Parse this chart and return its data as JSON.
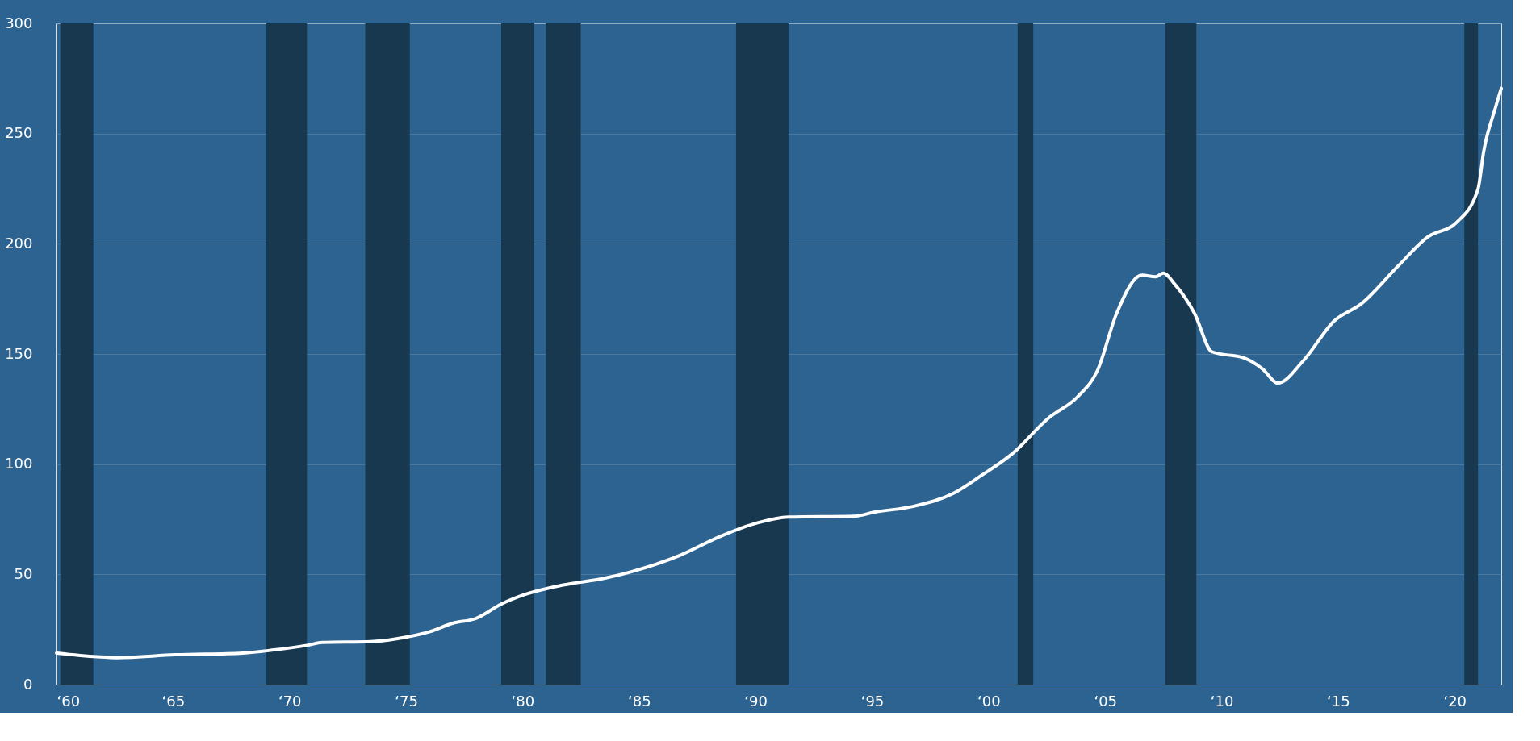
{
  "chart_data": {
    "type": "line",
    "x": [
      "1960-01",
      "1961-10",
      "1962-08",
      "1965-02",
      "1968-01",
      "1969-04",
      "1970-10",
      "1971-06",
      "1973-07",
      "1975-02",
      "1976-01",
      "1977-01",
      "1978-01",
      "1979-02",
      "1980-02",
      "1981-10",
      "1983-07",
      "1984-09",
      "1986-10",
      "1988-07",
      "1990-02",
      "1991-06",
      "1994-04",
      "1995-02",
      "1996-10",
      "1998-07",
      "1999-09",
      "2001-01",
      "2002-08",
      "2003-11",
      "2004-09",
      "2005-07",
      "2006-08",
      "2007-03",
      "2007-07",
      "2008-01",
      "2008-11",
      "2009-08",
      "2011-01",
      "2011-10",
      "2012-06",
      "2013-07",
      "2014-11",
      "2016-01",
      "2017-08",
      "2018-11",
      "2020-02",
      "2021-01",
      "2021-04",
      "2021-10",
      "2022-01"
    ],
    "series": [
      {
        "color": "#ffffff",
        "values": [
          14.3,
          12.6,
          12.2,
          13.5,
          14.3,
          15.6,
          17.8,
          19.1,
          19.5,
          21.7,
          23.9,
          27.8,
          30,
          36.5,
          40.8,
          45.2,
          48.2,
          51.2,
          58.6,
          67.3,
          73.4,
          76,
          76.4,
          78.2,
          80.8,
          86.8,
          94.7,
          104.6,
          121,
          130.7,
          142.4,
          168.5,
          185.8,
          185,
          186.7,
          181.5,
          168.5,
          151,
          148,
          143.3,
          136.8,
          146.8,
          165,
          172.8,
          190,
          203,
          209.7,
          224.8,
          242,
          261.7,
          270.5
        ]
      }
    ],
    "xlim": [
      "1960-01",
      "2022-01"
    ],
    "xticks": [
      {
        "value": "1960",
        "label": "‘60"
      },
      {
        "value": "1965",
        "label": "‘65"
      },
      {
        "value": "1970",
        "label": "‘70"
      },
      {
        "value": "1975",
        "label": "‘75"
      },
      {
        "value": "1980",
        "label": "‘80"
      },
      {
        "value": "1985",
        "label": "‘85"
      },
      {
        "value": "1990",
        "label": "‘90"
      },
      {
        "value": "1995",
        "label": "‘95"
      },
      {
        "value": "2000",
        "label": "‘00"
      },
      {
        "value": "2005",
        "label": "‘05"
      },
      {
        "value": "2010",
        "label": "‘10"
      },
      {
        "value": "2015",
        "label": "‘15"
      },
      {
        "value": "2020",
        "label": "‘20"
      }
    ],
    "ylim": [
      0,
      300
    ],
    "yticks": [
      0,
      50,
      100,
      150,
      200,
      250,
      300
    ],
    "bands": [
      {
        "axis": "x",
        "from": "1960-03",
        "to": "1961-08",
        "color": "#17384f"
      },
      {
        "axis": "x",
        "from": "1969-01",
        "to": "1970-10",
        "color": "#17384f"
      },
      {
        "axis": "x",
        "from": "1973-04",
        "to": "1975-03",
        "color": "#17384f"
      },
      {
        "axis": "x",
        "from": "1979-02",
        "to": "1980-07",
        "color": "#17384f"
      },
      {
        "axis": "x",
        "from": "1981-01",
        "to": "1982-07",
        "color": "#17384f"
      },
      {
        "axis": "x",
        "from": "1989-03",
        "to": "1991-06",
        "color": "#17384f"
      },
      {
        "axis": "x",
        "from": "2001-04",
        "to": "2001-12",
        "color": "#17384f"
      },
      {
        "axis": "x",
        "from": "2007-08",
        "to": "2008-12",
        "color": "#17384f"
      },
      {
        "axis": "x",
        "from": "2020-06",
        "to": "2021-01",
        "color": "#17384f"
      }
    ],
    "grid": "y",
    "line_style": "solid"
  }
}
